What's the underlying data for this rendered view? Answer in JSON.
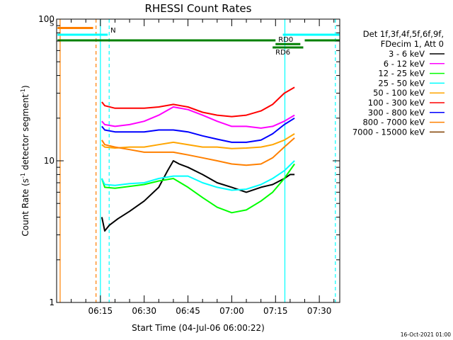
{
  "chart_data": {
    "type": "line",
    "title": "RHESSI Count Rates",
    "xlabel": "Start Time (04-Jul-06 06:00:22)",
    "ylabel_main": "Count Rate (s",
    "ylabel_sup1": "-1",
    "ylabel_mid": " detector segment",
    "ylabel_sup2": "-1",
    "ylabel_end": ")",
    "y_scale": "log",
    "ylim": [
      1,
      100
    ],
    "y_ticks": [
      1,
      10,
      100
    ],
    "y_tick_labels": [
      "1",
      "10",
      "100"
    ],
    "xlim_minutes": [
      0,
      97
    ],
    "x_ticks_minutes": [
      15,
      30,
      45,
      60,
      75,
      90
    ],
    "x_tick_labels": [
      "06:15",
      "06:30",
      "06:45",
      "07:00",
      "07:15",
      "07:30"
    ],
    "legend_header": [
      "Det 1f,3f,4f,5f,6f,9f,",
      "FDecim 1, Att 0"
    ],
    "legend_placement": "right",
    "footer": "16-Oct-2021 01:00",
    "series": [
      {
        "name": "3 - 6 keV",
        "color": "#000000",
        "x": [
          15.5,
          16.5,
          18,
          21,
          25,
          30,
          35,
          38,
          40,
          42,
          45,
          50,
          55,
          60,
          65,
          70,
          74,
          78,
          80,
          81.5
        ],
        "values": [
          4.0,
          3.2,
          3.5,
          3.9,
          4.4,
          5.2,
          6.5,
          8.5,
          10.0,
          9.5,
          9.0,
          8.0,
          7.0,
          6.5,
          6.0,
          6.5,
          6.8,
          7.5,
          8.0,
          8.0
        ]
      },
      {
        "name": "6 - 12 keV",
        "color": "#ff00ff",
        "x": [
          15.5,
          16.5,
          20,
          25,
          30,
          35,
          40,
          45,
          50,
          55,
          60,
          65,
          70,
          74,
          78,
          81.5
        ],
        "values": [
          19,
          18,
          17.5,
          18,
          19,
          21,
          24,
          23,
          21,
          19,
          17.5,
          17.5,
          17,
          17.5,
          19,
          21
        ]
      },
      {
        "name": "12 - 25 keV",
        "color": "#00ff00",
        "x": [
          15.5,
          16.5,
          20,
          25,
          30,
          35,
          40,
          45,
          50,
          55,
          60,
          65,
          70,
          74,
          78,
          81.5
        ],
        "values": [
          7.5,
          6.5,
          6.4,
          6.6,
          6.8,
          7.2,
          7.5,
          6.5,
          5.5,
          4.7,
          4.3,
          4.5,
          5.2,
          6.0,
          7.5,
          9.5
        ]
      },
      {
        "name": "25 - 50 keV",
        "color": "#00ffff",
        "x": [
          15.5,
          16.5,
          20,
          25,
          30,
          35,
          40,
          45,
          50,
          55,
          60,
          65,
          70,
          74,
          78,
          81.5
        ],
        "values": [
          7.5,
          6.8,
          6.7,
          6.9,
          7.0,
          7.5,
          7.8,
          7.8,
          7.0,
          6.5,
          6.2,
          6.3,
          6.8,
          7.5,
          8.5,
          10.0
        ]
      },
      {
        "name": "50 - 100 keV",
        "color": "#ffa500",
        "x": [
          15.5,
          16.5,
          20,
          25,
          30,
          35,
          40,
          45,
          50,
          55,
          60,
          65,
          70,
          74,
          78,
          81.5
        ],
        "values": [
          13,
          12.5,
          12.3,
          12.5,
          12.5,
          13,
          13.5,
          13,
          12.5,
          12.5,
          12.2,
          12.3,
          12.5,
          13,
          14,
          15.5
        ]
      },
      {
        "name": "100 - 300 keV",
        "color": "#ff0000",
        "x": [
          15.5,
          16.5,
          20,
          25,
          30,
          35,
          40,
          45,
          50,
          55,
          60,
          65,
          70,
          74,
          78,
          81.5
        ],
        "values": [
          26,
          24.5,
          23.5,
          23.5,
          23.5,
          24,
          25,
          24,
          22,
          21,
          20.5,
          21,
          22.5,
          25,
          30,
          33
        ]
      },
      {
        "name": "300 - 800 keV",
        "color": "#0000ff",
        "x": [
          15.5,
          16.5,
          20,
          25,
          30,
          35,
          40,
          45,
          50,
          55,
          60,
          65,
          70,
          74,
          78,
          81.5
        ],
        "values": [
          17.5,
          16.5,
          16,
          16,
          16,
          16.5,
          16.5,
          16,
          15,
          14.2,
          13.5,
          13.5,
          14,
          15.5,
          18,
          20
        ]
      },
      {
        "name": "800 - 7000 keV",
        "color": "#ff8000",
        "x": [
          15.5,
          16.5,
          20,
          25,
          30,
          35,
          40,
          45,
          50,
          55,
          60,
          65,
          70,
          74,
          78,
          81.5
        ],
        "values": [
          14,
          13,
          12.5,
          12,
          11.5,
          11.5,
          11.5,
          11,
          10.5,
          10,
          9.5,
          9.3,
          9.5,
          10.5,
          12.5,
          14.5
        ]
      },
      {
        "name": "7000 - 15000 keV",
        "color": "#804000",
        "x": [],
        "values": []
      }
    ],
    "states": [
      {
        "label": "S",
        "color": "#ff8000",
        "x0": 0.3,
        "x1": 12.5,
        "y": 0.9688
      },
      {
        "label": "N",
        "color": "#00ffff",
        "x0": 0.3,
        "x1": 17.5,
        "y": 0.945
      },
      {
        "label": "",
        "color": "#00ffff",
        "x0": 77.5,
        "x1": 97,
        "y": 0.945
      },
      {
        "label": "",
        "color": "#008000",
        "x0": 0.3,
        "x1": 75,
        "y": 0.925
      },
      {
        "label": "RD0",
        "color": "#008000",
        "x0": 75,
        "x1": 83.5,
        "y": 0.912
      },
      {
        "label": "",
        "color": "#008000",
        "x0": 85,
        "x1": 97,
        "y": 0.925
      },
      {
        "label": "RD6",
        "color": "#008000",
        "x0": 74,
        "x1": 84.5,
        "y": 0.9
      }
    ],
    "vlines": [
      {
        "x": 1.2,
        "color": "#ff8000",
        "dash": false
      },
      {
        "x": 13.5,
        "color": "#ff8000",
        "dash": true
      },
      {
        "x": 15.0,
        "color": "#00ffff",
        "dash": false
      },
      {
        "x": 18.0,
        "color": "#00ffff",
        "dash": true
      },
      {
        "x": 78.2,
        "color": "#00ffff",
        "dash": false
      },
      {
        "x": 95.5,
        "color": "#00ffff",
        "dash": true
      }
    ]
  }
}
